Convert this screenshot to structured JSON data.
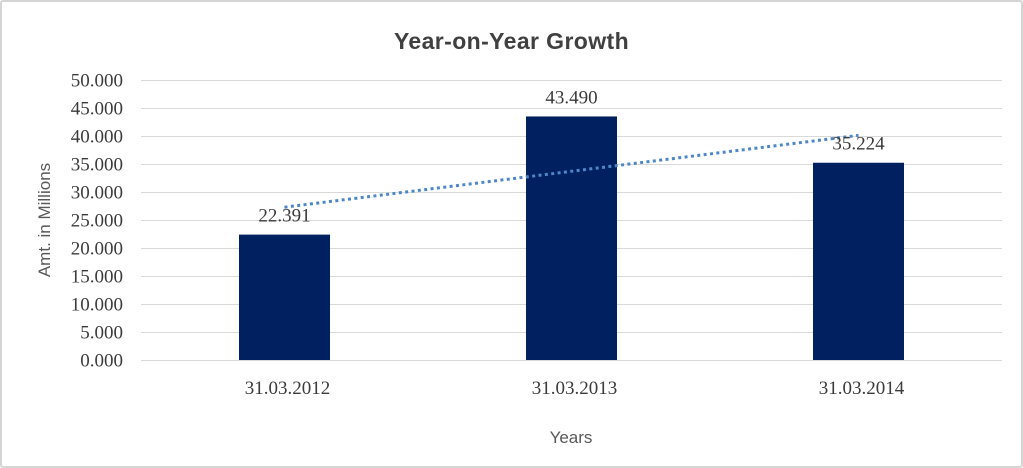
{
  "chart_data": {
    "type": "bar",
    "title": "Year-on-Year Growth",
    "xlabel": "Years",
    "ylabel": "Amt. in Millions",
    "categories": [
      "31.03.2012",
      "31.03.2013",
      "31.03.2014"
    ],
    "values": [
      22.391,
      43.49,
      35.224
    ],
    "value_labels": [
      "22.391",
      "43.490",
      "35.224"
    ],
    "ylim": [
      0,
      50
    ],
    "ytick_step": 5,
    "ytick_labels": [
      "0.000",
      "5.000",
      "10.000",
      "15.000",
      "20.000",
      "25.000",
      "30.000",
      "35.000",
      "40.000",
      "45.000",
      "50.000"
    ],
    "grid": true,
    "legend": "none",
    "trendline": {
      "type": "linear",
      "style": "dotted"
    },
    "colors": {
      "bar": "#002060",
      "trendline": "#4E87C8",
      "gridline": "#D9D9D9",
      "title": "#404040",
      "tick_label": "#3B3B3B",
      "axis_title": "#595959",
      "background": "#FFFFFF",
      "border": "#D5D5D5"
    }
  }
}
